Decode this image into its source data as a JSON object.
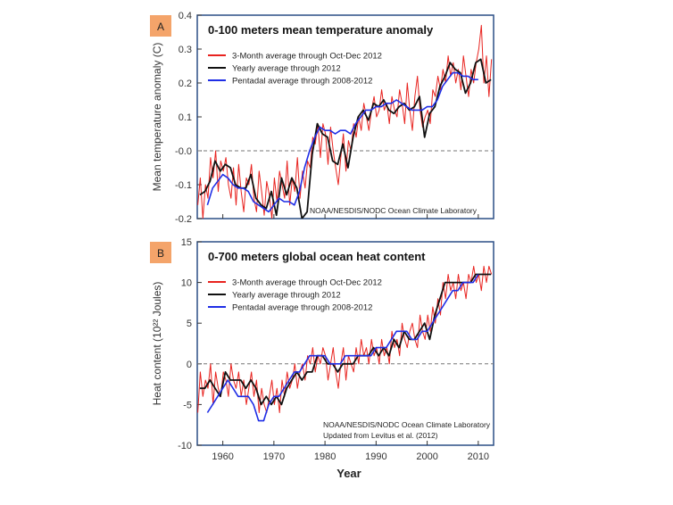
{
  "colors": {
    "red": "#e8231f",
    "black": "#111111",
    "blue": "#1f2ee6",
    "frame": "#2b4f86",
    "badge": "#f4a46a"
  },
  "chart_data": [
    {
      "type": "line",
      "badge": "A",
      "title": "0-100 meters mean temperature anomaly",
      "ylabel": "Mean temperature anomaly (C)",
      "xlabel": "",
      "xlim": [
        1955,
        2013
      ],
      "ylim": [
        -0.2,
        0.4
      ],
      "yticks": [
        -0.2,
        -0.1,
        0.0,
        0.1,
        0.2,
        0.3,
        0.4
      ],
      "ytick_labels": [
        "-0.2",
        "-0.1",
        "-0.0",
        "0.1",
        "0.2",
        "0.3",
        "0.4"
      ],
      "xticks": [
        1960,
        1970,
        1980,
        1990,
        2000,
        2010
      ],
      "xtick_labels": [],
      "zero_line": true,
      "legend_position": "top-left",
      "credit": [
        "NOAA/NESDIS/NODC Ocean Climate Laboratory"
      ],
      "series": [
        {
          "name": "3-Month average through Oct-Dec 2012",
          "color": "red",
          "x": [
            1955.1,
            1955.6,
            1956.1,
            1956.6,
            1957.1,
            1957.6,
            1958.1,
            1958.6,
            1959.1,
            1959.6,
            1960.1,
            1960.6,
            1961.1,
            1961.6,
            1962.1,
            1962.6,
            1963.1,
            1963.6,
            1964.1,
            1964.6,
            1965.1,
            1965.6,
            1966.1,
            1966.6,
            1967.1,
            1967.6,
            1968.1,
            1968.6,
            1969.1,
            1969.6,
            1970.1,
            1970.6,
            1971.1,
            1971.6,
            1972.1,
            1972.6,
            1973.1,
            1973.6,
            1974.1,
            1974.6,
            1975.1,
            1975.6,
            1976.1,
            1976.6,
            1977.1,
            1977.6,
            1978.1,
            1978.6,
            1979.1,
            1979.6,
            1980.1,
            1980.6,
            1981.1,
            1981.6,
            1982.1,
            1982.6,
            1983.1,
            1983.6,
            1984.1,
            1984.6,
            1985.1,
            1985.6,
            1986.1,
            1986.6,
            1987.1,
            1987.6,
            1988.1,
            1988.6,
            1989.1,
            1989.6,
            1990.1,
            1990.6,
            1991.1,
            1991.6,
            1992.1,
            1992.6,
            1993.1,
            1993.6,
            1994.1,
            1994.6,
            1995.1,
            1995.6,
            1996.1,
            1996.6,
            1997.1,
            1997.6,
            1998.1,
            1998.6,
            1999.1,
            1999.6,
            2000.1,
            2000.6,
            2001.1,
            2001.6,
            2002.1,
            2002.6,
            2003.1,
            2003.6,
            2004.1,
            2004.6,
            2005.1,
            2005.6,
            2006.1,
            2006.6,
            2007.1,
            2007.6,
            2008.1,
            2008.6,
            2009.1,
            2009.6,
            2010.1,
            2010.6,
            2011.1,
            2011.6,
            2012.1,
            2012.6
          ],
          "y": [
            -0.16,
            -0.08,
            -0.2,
            -0.1,
            -0.14,
            -0.02,
            -0.08,
            0.0,
            -0.12,
            -0.03,
            -0.06,
            -0.02,
            -0.1,
            -0.14,
            -0.05,
            -0.16,
            -0.04,
            -0.12,
            -0.18,
            -0.08,
            -0.1,
            -0.04,
            -0.14,
            -0.18,
            -0.06,
            -0.12,
            -0.19,
            -0.09,
            -0.13,
            -0.2,
            -0.08,
            -0.15,
            -0.06,
            -0.1,
            -0.14,
            -0.03,
            -0.16,
            -0.08,
            -0.12,
            -0.02,
            -0.14,
            -0.06,
            -0.11,
            -0.03,
            -0.05,
            0.04,
            0.02,
            0.08,
            -0.02,
            0.08,
            0.05,
            -0.04,
            0.07,
            0.0,
            -0.05,
            -0.1,
            -0.02,
            0.05,
            -0.06,
            0.03,
            0.0,
            0.08,
            0.04,
            0.1,
            0.06,
            0.14,
            0.1,
            0.06,
            0.12,
            0.16,
            0.1,
            0.12,
            0.18,
            0.12,
            0.14,
            0.08,
            0.16,
            0.12,
            0.1,
            0.18,
            0.14,
            0.08,
            0.2,
            0.12,
            0.06,
            0.16,
            0.22,
            0.12,
            0.07,
            0.1,
            0.12,
            0.08,
            0.18,
            0.16,
            0.22,
            0.18,
            0.24,
            0.2,
            0.28,
            0.22,
            0.26,
            0.2,
            0.24,
            0.18,
            0.28,
            0.22,
            0.16,
            0.24,
            0.2,
            0.26,
            0.3,
            0.37,
            0.2,
            0.28,
            0.16,
            0.27
          ]
        },
        {
          "name": "Yearly average through 2012",
          "color": "black",
          "x": [
            1955.5,
            1956.5,
            1957.5,
            1958.5,
            1959.5,
            1960.5,
            1961.5,
            1962.5,
            1963.5,
            1964.5,
            1965.5,
            1966.5,
            1967.5,
            1968.5,
            1969.5,
            1970.5,
            1971.5,
            1972.5,
            1973.5,
            1974.5,
            1975.5,
            1976.5,
            1977.5,
            1978.5,
            1979.5,
            1980.5,
            1981.5,
            1982.5,
            1983.5,
            1984.5,
            1985.5,
            1986.5,
            1987.5,
            1988.5,
            1989.5,
            1990.5,
            1991.5,
            1992.5,
            1993.5,
            1994.5,
            1995.5,
            1996.5,
            1997.5,
            1998.5,
            1999.5,
            2000.5,
            2001.5,
            2002.5,
            2003.5,
            2004.5,
            2005.5,
            2006.5,
            2007.5,
            2008.5,
            2009.5,
            2010.5,
            2011.5,
            2012.5
          ],
          "y": [
            -0.13,
            -0.12,
            -0.09,
            -0.03,
            -0.06,
            -0.04,
            -0.05,
            -0.1,
            -0.11,
            -0.11,
            -0.07,
            -0.14,
            -0.16,
            -0.17,
            -0.12,
            -0.19,
            -0.08,
            -0.13,
            -0.08,
            -0.11,
            -0.2,
            -0.18,
            -0.01,
            0.08,
            0.05,
            0.04,
            -0.03,
            -0.04,
            0.02,
            -0.05,
            0.04,
            0.1,
            0.12,
            0.09,
            0.14,
            0.13,
            0.15,
            0.12,
            0.11,
            0.13,
            0.14,
            0.12,
            0.13,
            0.16,
            0.04,
            0.11,
            0.13,
            0.19,
            0.22,
            0.26,
            0.24,
            0.23,
            0.17,
            0.2,
            0.26,
            0.27,
            0.2,
            0.21
          ]
        },
        {
          "name": "Pentadal average through 2008-2012",
          "color": "blue",
          "x": [
            1957,
            1958,
            1959,
            1960,
            1961,
            1962,
            1963,
            1964,
            1965,
            1966,
            1967,
            1968,
            1969,
            1970,
            1971,
            1972,
            1973,
            1974,
            1975,
            1976,
            1977,
            1978,
            1979,
            1980,
            1981,
            1982,
            1983,
            1984,
            1985,
            1986,
            1987,
            1988,
            1989,
            1990,
            1991,
            1992,
            1993,
            1994,
            1995,
            1996,
            1997,
            1998,
            1999,
            2000,
            2001,
            2002,
            2003,
            2004,
            2005,
            2006,
            2007,
            2008,
            2009,
            2010
          ],
          "y": [
            -0.16,
            -0.11,
            -0.09,
            -0.07,
            -0.08,
            -0.1,
            -0.11,
            -0.11,
            -0.12,
            -0.15,
            -0.16,
            -0.17,
            -0.18,
            -0.16,
            -0.14,
            -0.15,
            -0.15,
            -0.16,
            -0.12,
            -0.05,
            0.0,
            0.04,
            0.07,
            0.06,
            0.06,
            0.05,
            0.06,
            0.06,
            0.05,
            0.08,
            0.1,
            0.12,
            0.12,
            0.13,
            0.13,
            0.14,
            0.14,
            0.15,
            0.14,
            0.13,
            0.12,
            0.12,
            0.12,
            0.13,
            0.13,
            0.15,
            0.19,
            0.21,
            0.23,
            0.23,
            0.22,
            0.22,
            0.21,
            0.21
          ]
        }
      ]
    },
    {
      "type": "line",
      "badge": "B",
      "title": "0-700 meters global ocean heat content",
      "ylabel": "Heat content (10²² Joules)",
      "xlabel": "Year",
      "xlim": [
        1955,
        2013
      ],
      "ylim": [
        -10,
        15
      ],
      "yticks": [
        -10,
        -5,
        0,
        5,
        10,
        15
      ],
      "ytick_labels": [
        "-10",
        "-5",
        "0",
        "5",
        "10",
        "15"
      ],
      "xticks": [
        1960,
        1970,
        1980,
        1990,
        2000,
        2010
      ],
      "xtick_labels": [
        "1960",
        "1970",
        "1980",
        "1990",
        "2000",
        "2010"
      ],
      "zero_line": true,
      "legend_position": "top-left",
      "credit": [
        "NOAA/NESDIS/NODC Ocean Climate Laboratory",
        "Updated from Levitus et al. (2012)"
      ],
      "series": [
        {
          "name": "3-Month average through Oct-Dec 2012",
          "color": "red",
          "x": [
            1955.1,
            1955.6,
            1956.1,
            1956.6,
            1957.1,
            1957.6,
            1958.1,
            1958.6,
            1959.1,
            1959.6,
            1960.1,
            1960.6,
            1961.1,
            1961.6,
            1962.1,
            1962.6,
            1963.1,
            1963.6,
            1964.1,
            1964.6,
            1965.1,
            1965.6,
            1966.1,
            1966.6,
            1967.1,
            1967.6,
            1968.1,
            1968.6,
            1969.1,
            1969.6,
            1970.1,
            1970.6,
            1971.1,
            1971.6,
            1972.1,
            1972.6,
            1973.1,
            1973.6,
            1974.1,
            1974.6,
            1975.1,
            1975.6,
            1976.1,
            1976.6,
            1977.1,
            1977.6,
            1978.1,
            1978.6,
            1979.1,
            1979.6,
            1980.1,
            1980.6,
            1981.1,
            1981.6,
            1982.1,
            1982.6,
            1983.1,
            1983.6,
            1984.1,
            1984.6,
            1985.1,
            1985.6,
            1986.1,
            1986.6,
            1987.1,
            1987.6,
            1988.1,
            1988.6,
            1989.1,
            1989.6,
            1990.1,
            1990.6,
            1991.1,
            1991.6,
            1992.1,
            1992.6,
            1993.1,
            1993.6,
            1994.1,
            1994.6,
            1995.1,
            1995.6,
            1996.1,
            1996.6,
            1997.1,
            1997.6,
            1998.1,
            1998.6,
            1999.1,
            1999.6,
            2000.1,
            2000.6,
            2001.1,
            2001.6,
            2002.1,
            2002.6,
            2003.1,
            2003.6,
            2004.1,
            2004.6,
            2005.1,
            2005.6,
            2006.1,
            2006.6,
            2007.1,
            2007.6,
            2008.1,
            2008.6,
            2009.1,
            2009.6,
            2010.1,
            2010.6,
            2011.1,
            2011.6,
            2012.1,
            2012.6
          ],
          "y": [
            -6,
            -1,
            -4,
            -2,
            -3,
            0,
            -5,
            -1,
            -3,
            -4,
            -1,
            -2,
            -4,
            0,
            -2,
            -3,
            -1,
            -4,
            -2,
            -5,
            -3,
            -1,
            -4,
            -2,
            -6,
            -3,
            -5,
            -6,
            -4,
            -2,
            -5,
            -3,
            -6,
            -2,
            -4,
            -1,
            -3,
            -2,
            0,
            -3,
            -1,
            0,
            -2,
            1,
            0,
            2,
            -1,
            1,
            0,
            2,
            1,
            -2,
            0,
            2,
            -1,
            -3,
            0,
            2,
            -2,
            1,
            0,
            -1,
            2,
            0,
            3,
            1,
            2,
            0,
            3,
            1,
            2,
            0,
            3,
            1,
            2,
            0,
            4,
            2,
            3,
            1,
            5,
            3,
            2,
            4,
            5,
            3,
            2,
            6,
            4,
            3,
            6,
            4,
            7,
            5,
            8,
            6,
            10,
            8,
            11,
            9,
            10,
            8,
            11,
            9,
            10,
            8,
            11,
            10,
            12,
            10,
            11,
            9,
            12,
            10,
            12,
            11
          ]
        },
        {
          "name": "Yearly average through 2012",
          "color": "black",
          "x": [
            1955.5,
            1956.5,
            1957.5,
            1958.5,
            1959.5,
            1960.5,
            1961.5,
            1962.5,
            1963.5,
            1964.5,
            1965.5,
            1966.5,
            1967.5,
            1968.5,
            1969.5,
            1970.5,
            1971.5,
            1972.5,
            1973.5,
            1974.5,
            1975.5,
            1976.5,
            1977.5,
            1978.5,
            1979.5,
            1980.5,
            1981.5,
            1982.5,
            1983.5,
            1984.5,
            1985.5,
            1986.5,
            1987.5,
            1988.5,
            1989.5,
            1990.5,
            1991.5,
            1992.5,
            1993.5,
            1994.5,
            1995.5,
            1996.5,
            1997.5,
            1998.5,
            1999.5,
            2000.5,
            2001.5,
            2002.5,
            2003.5,
            2004.5,
            2005.5,
            2006.5,
            2007.5,
            2008.5,
            2009.5,
            2010.5,
            2011.5,
            2012.5
          ],
          "y": [
            -3,
            -3,
            -2,
            -3,
            -4,
            -1,
            -2,
            -2,
            -2,
            -3,
            -2,
            -3,
            -5,
            -4,
            -5,
            -4,
            -5,
            -3,
            -2,
            -1,
            -2,
            -1,
            -1,
            1,
            1,
            0,
            0,
            -1,
            0,
            0,
            0,
            1,
            1,
            1,
            2,
            1,
            2,
            1,
            3,
            2,
            4,
            3,
            3,
            4,
            5,
            3,
            6,
            8,
            10,
            10,
            10,
            10,
            10,
            10,
            11,
            11,
            11,
            11
          ]
        },
        {
          "name": "Pentadal average through 2008-2012",
          "color": "blue",
          "x": [
            1957,
            1958,
            1959,
            1960,
            1961,
            1962,
            1963,
            1964,
            1965,
            1966,
            1967,
            1968,
            1969,
            1970,
            1971,
            1972,
            1973,
            1974,
            1975,
            1976,
            1977,
            1978,
            1979,
            1980,
            1981,
            1982,
            1983,
            1984,
            1985,
            1986,
            1987,
            1988,
            1989,
            1990,
            1991,
            1992,
            1993,
            1994,
            1995,
            1996,
            1997,
            1998,
            1999,
            2000,
            2001,
            2002,
            2003,
            2004,
            2005,
            2006,
            2007,
            2008,
            2009,
            2010
          ],
          "y": [
            -6,
            -5,
            -4,
            -3,
            -2,
            -3,
            -4,
            -4,
            -4,
            -5,
            -7,
            -7,
            -5,
            -4,
            -4,
            -3,
            -2,
            -1,
            -1,
            0,
            1,
            1,
            1,
            1,
            0,
            0,
            0,
            1,
            1,
            1,
            1,
            1,
            1,
            2,
            2,
            2,
            3,
            4,
            4,
            4,
            3,
            3,
            4,
            4,
            5,
            6,
            7,
            8,
            9,
            9,
            10,
            10,
            10,
            11
          ]
        }
      ]
    }
  ]
}
